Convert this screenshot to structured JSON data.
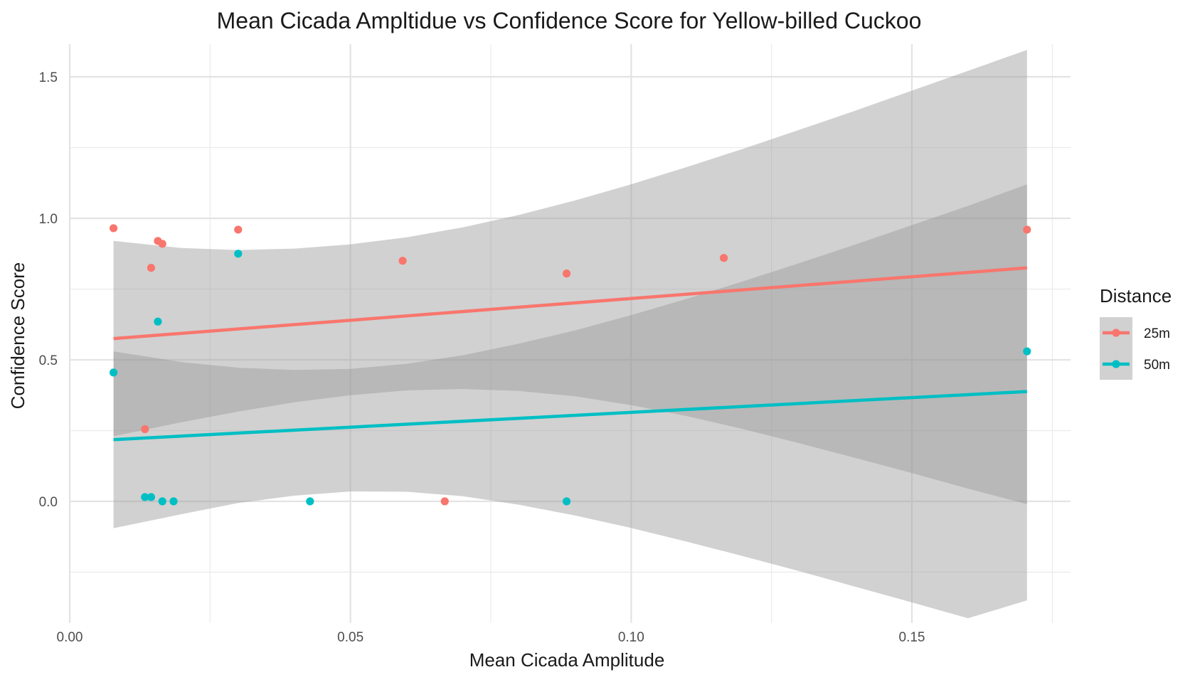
{
  "chart_data": {
    "type": "scatter",
    "title": "Mean Cicada Ampltidue vs Confidence Score for Yellow-billed Cuckoo",
    "xlabel": "Mean Cicada Amplitude",
    "ylabel": "Confidence Score",
    "xlim": [
      -0.0005,
      0.179
    ],
    "ylim": [
      -0.42,
      1.62
    ],
    "x_ticks": [
      0.0,
      0.05,
      0.1,
      0.15
    ],
    "x_tick_labels": [
      "0.00",
      "0.05",
      "0.10",
      "0.15"
    ],
    "y_ticks": [
      0.0,
      0.5,
      1.0,
      1.5
    ],
    "y_tick_labels": [
      "0.0",
      "0.5",
      "1.0",
      "1.5"
    ],
    "x_minor_ticks": [
      0.025,
      0.075,
      0.125,
      0.175
    ],
    "y_minor_ticks": [
      -0.25,
      0.25,
      0.75,
      1.25
    ],
    "grid": true,
    "legend": {
      "title": "Distance",
      "position": "right"
    },
    "series": [
      {
        "name": "25m",
        "color": "#F8766D",
        "points": [
          {
            "x": 0.0078,
            "y": 0.965
          },
          {
            "x": 0.0134,
            "y": 0.255
          },
          {
            "x": 0.0145,
            "y": 0.825
          },
          {
            "x": 0.0157,
            "y": 0.92
          },
          {
            "x": 0.0165,
            "y": 0.91
          },
          {
            "x": 0.03,
            "y": 0.96
          },
          {
            "x": 0.0593,
            "y": 0.85
          },
          {
            "x": 0.0668,
            "y": 0.0
          },
          {
            "x": 0.0885,
            "y": 0.805
          },
          {
            "x": 0.1165,
            "y": 0.86
          },
          {
            "x": 0.1705,
            "y": 0.96
          }
        ],
        "fit": {
          "x": [
            0.0078,
            0.1705
          ],
          "y": [
            0.575,
            0.825
          ],
          "ci_upper": [
            [
              0.0078,
              0.92
            ],
            [
              0.02,
              0.895
            ],
            [
              0.03,
              0.888
            ],
            [
              0.04,
              0.893
            ],
            [
              0.05,
              0.908
            ],
            [
              0.06,
              0.933
            ],
            [
              0.07,
              0.968
            ],
            [
              0.08,
              1.012
            ],
            [
              0.09,
              1.063
            ],
            [
              0.1,
              1.12
            ],
            [
              0.11,
              1.182
            ],
            [
              0.12,
              1.246
            ],
            [
              0.13,
              1.313
            ],
            [
              0.14,
              1.381
            ],
            [
              0.15,
              1.451
            ],
            [
              0.16,
              1.521
            ],
            [
              0.1705,
              1.595
            ]
          ],
          "ci_lower": [
            [
              0.0078,
              0.23
            ],
            [
              0.02,
              0.28
            ],
            [
              0.03,
              0.317
            ],
            [
              0.04,
              0.35
            ],
            [
              0.05,
              0.375
            ],
            [
              0.06,
              0.392
            ],
            [
              0.07,
              0.397
            ],
            [
              0.08,
              0.39
            ],
            [
              0.09,
              0.371
            ],
            [
              0.1,
              0.34
            ],
            [
              0.11,
              0.301
            ],
            [
              0.12,
              0.255
            ],
            [
              0.13,
              0.205
            ],
            [
              0.14,
              0.153
            ],
            [
              0.15,
              0.1
            ],
            [
              0.16,
              0.045
            ],
            [
              0.1705,
              -0.01
            ]
          ]
        }
      },
      {
        "name": "50m",
        "color": "#00BFC4",
        "points": [
          {
            "x": 0.0078,
            "y": 0.455
          },
          {
            "x": 0.0134,
            "y": 0.015
          },
          {
            "x": 0.0145,
            "y": 0.015
          },
          {
            "x": 0.0157,
            "y": 0.635
          },
          {
            "x": 0.0165,
            "y": 0.0
          },
          {
            "x": 0.0185,
            "y": 0.0
          },
          {
            "x": 0.03,
            "y": 0.875
          },
          {
            "x": 0.0428,
            "y": 0.0
          },
          {
            "x": 0.0885,
            "y": 0.0
          },
          {
            "x": 0.1705,
            "y": 0.53
          }
        ],
        "fit": {
          "x": [
            0.0078,
            0.1705
          ],
          "y": [
            0.218,
            0.388
          ],
          "ci_upper": [
            [
              0.0078,
              0.53
            ],
            [
              0.02,
              0.492
            ],
            [
              0.03,
              0.472
            ],
            [
              0.04,
              0.464
            ],
            [
              0.05,
              0.468
            ],
            [
              0.06,
              0.486
            ],
            [
              0.07,
              0.516
            ],
            [
              0.08,
              0.557
            ],
            [
              0.09,
              0.604
            ],
            [
              0.1,
              0.658
            ],
            [
              0.11,
              0.716
            ],
            [
              0.12,
              0.778
            ],
            [
              0.13,
              0.842
            ],
            [
              0.14,
              0.908
            ],
            [
              0.15,
              0.976
            ],
            [
              0.16,
              1.044
            ],
            [
              0.1705,
              1.12
            ]
          ],
          "ci_lower": [
            [
              0.0078,
              -0.095
            ],
            [
              0.02,
              -0.045
            ],
            [
              0.03,
              -0.006
            ],
            [
              0.04,
              0.02
            ],
            [
              0.05,
              0.035
            ],
            [
              0.06,
              0.034
            ],
            [
              0.07,
              0.018
            ],
            [
              0.08,
              -0.012
            ],
            [
              0.09,
              -0.05
            ],
            [
              0.1,
              -0.094
            ],
            [
              0.11,
              -0.143
            ],
            [
              0.12,
              -0.194
            ],
            [
              0.13,
              -0.247
            ],
            [
              0.14,
              -0.302
            ],
            [
              0.15,
              -0.357
            ],
            [
              0.16,
              -0.413
            ],
            [
              0.1705,
              -0.35
            ]
          ]
        }
      }
    ],
    "ci_fill": "#999999"
  }
}
